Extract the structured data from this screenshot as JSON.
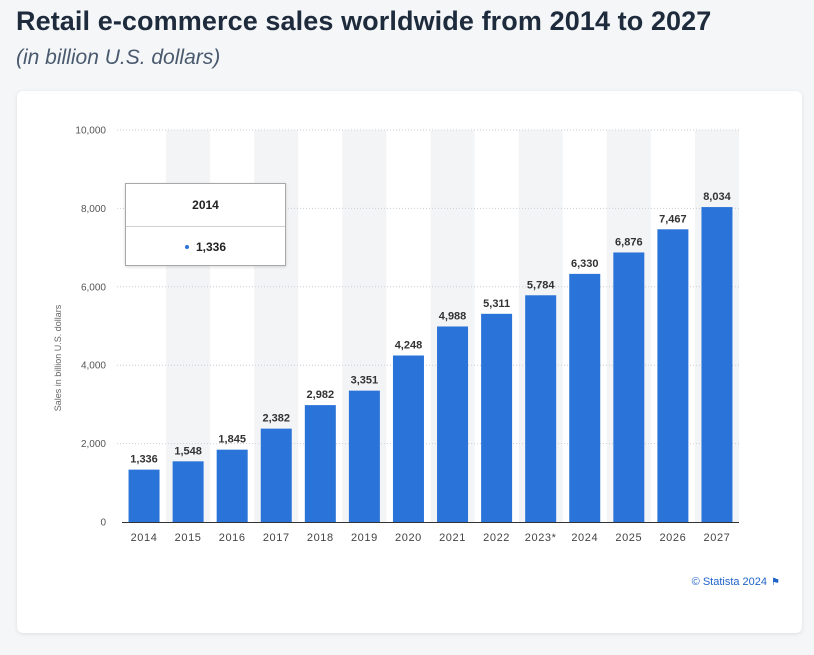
{
  "header": {
    "title": "Retail e-commerce sales worldwide from 2014 to 2027",
    "subtitle": "(in billion U.S. dollars)"
  },
  "tooltip": {
    "category": "2014",
    "value": "1,336"
  },
  "credit": {
    "text": "© Statista 2024"
  },
  "colors": {
    "bar": "#2a74d9",
    "band": "#f3f4f6",
    "grid": "#c9ced6"
  },
  "chart_data": {
    "type": "bar",
    "title": "Retail e-commerce sales worldwide from 2014 to 2027",
    "subtitle": "(in billion U.S. dollars)",
    "xlabel": "",
    "ylabel": "Sales in billion U.S. dollars",
    "ylim": [
      0,
      10000
    ],
    "yticks": [
      0,
      2000,
      4000,
      6000,
      8000,
      10000
    ],
    "ytick_labels": [
      "0",
      "2,000",
      "4,000",
      "6,000",
      "8,000",
      "10,000"
    ],
    "grid": true,
    "categories": [
      "2014",
      "2015",
      "2016",
      "2017",
      "2018",
      "2019",
      "2020",
      "2021",
      "2022",
      "2023*",
      "2024",
      "2025",
      "2026",
      "2027"
    ],
    "values": [
      1336,
      1548,
      1845,
      2382,
      2982,
      3351,
      4248,
      4988,
      5311,
      5784,
      6330,
      6876,
      7467,
      8034
    ],
    "value_labels": [
      "1,336",
      "1,548",
      "1,845",
      "2,382",
      "2,982",
      "3,351",
      "4,248",
      "4,988",
      "5,311",
      "5,784",
      "6,330",
      "6,876",
      "7,467",
      "8,034"
    ]
  }
}
